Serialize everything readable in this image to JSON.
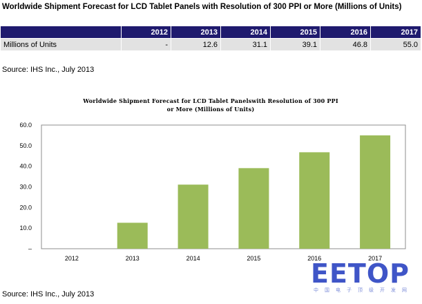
{
  "page_title": "Worldwide Shipment Forecast for LCD Tablet Panels with Resolution of  300 PPI or More (Millions of Units)",
  "table": {
    "headers": [
      "",
      "2012",
      "2013",
      "2014",
      "2015",
      "2016",
      "2017"
    ],
    "row_label": "Millions of Units",
    "values": [
      "-",
      "12.6",
      "31.1",
      "39.1",
      "46.8",
      "55.0"
    ]
  },
  "source_top": "Source: IHS Inc., July 2013",
  "source_bottom": "Source: IHS Inc., July 2013",
  "watermark": {
    "logo": "EETOP",
    "subtitle": "中国电子顶级开发网"
  },
  "colors": {
    "bar": "#9bbb59",
    "table_header": "#1f1a6e",
    "table_row": "#e2e2e2",
    "watermark": "#3f55c7"
  },
  "chart_data": {
    "type": "bar",
    "title_line1": "Worldwide Shipment Forecast for LCD Tablet Panelswith Resolution of 300 PPI",
    "title_line2": "or More (Millions of Units)",
    "categories": [
      "2012",
      "2013",
      "2014",
      "2015",
      "2016",
      "2017"
    ],
    "values": [
      0,
      12.6,
      31.1,
      39.1,
      46.8,
      55.0
    ],
    "y_ticks": [
      "–",
      "10.0",
      "20.0",
      "30.0",
      "40.0",
      "50.0",
      "60.0"
    ],
    "ylim": [
      0,
      60
    ],
    "grid": false,
    "legend": "none"
  }
}
